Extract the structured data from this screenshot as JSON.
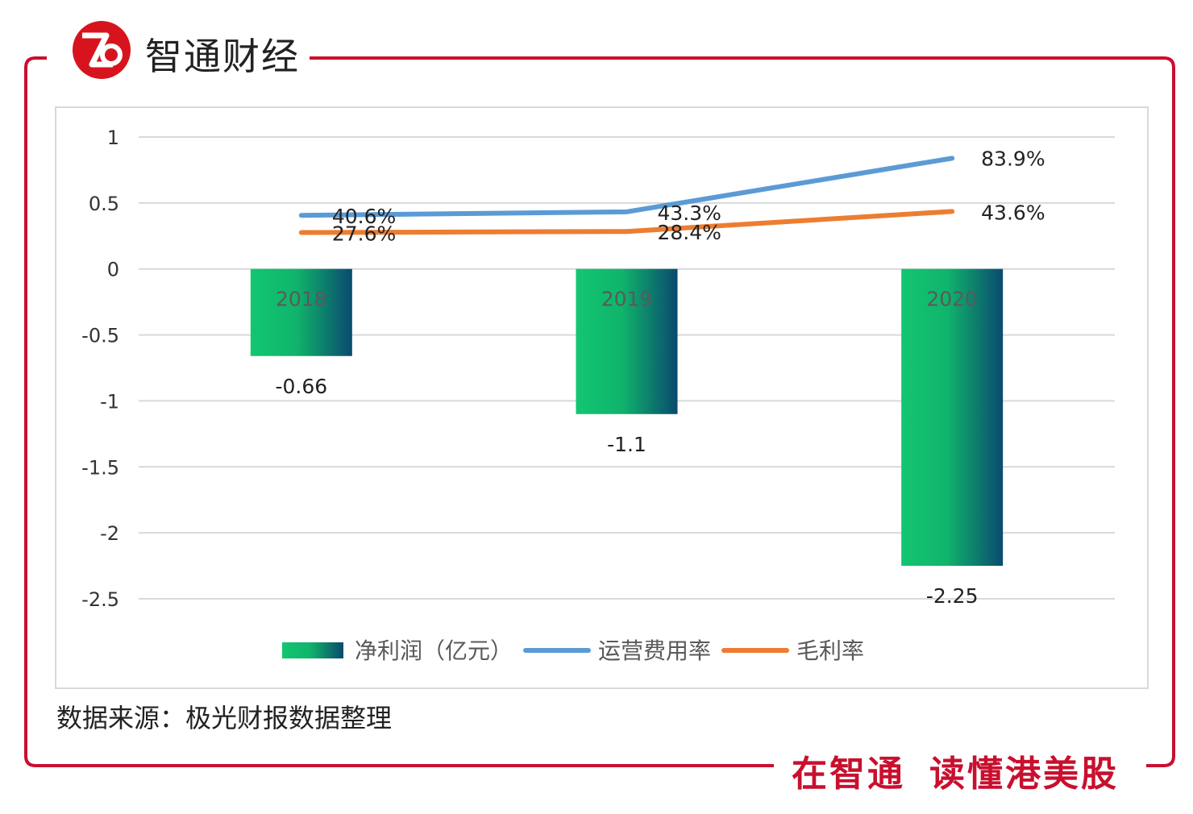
{
  "brand": {
    "name": "智通财经",
    "logo_icon": "zhitong-logo-icon",
    "accent_color": "#c8102e"
  },
  "chart_data": {
    "type": "bar",
    "categories": [
      "2018",
      "2019",
      "2020"
    ],
    "ylim": [
      -2.5,
      1
    ],
    "yticks": [
      "1",
      "0.5",
      "0",
      "-0.5",
      "-1",
      "-1.5",
      "-2",
      "-2.5"
    ],
    "grid": true,
    "legend_position": "bottom",
    "series": [
      {
        "name": "净利润（亿元）",
        "type": "bar",
        "values": [
          -0.66,
          -1.1,
          -2.25
        ],
        "labels": [
          "-0.66",
          "-1.1",
          "-2.25"
        ],
        "color": "#12c670"
      },
      {
        "name": "运营费用率",
        "type": "line",
        "values": [
          0.406,
          0.433,
          0.839
        ],
        "labels": [
          "40.6%",
          "43.3%",
          "83.9%"
        ],
        "color": "#5b9bd5"
      },
      {
        "name": "毛利率",
        "type": "line",
        "values": [
          0.276,
          0.284,
          0.436
        ],
        "labels": [
          "27.6%",
          "28.4%",
          "43.6%"
        ],
        "color": "#ed7d31"
      }
    ]
  },
  "source_note": "数据来源：极光财报数据整理",
  "slogan": {
    "left": "在智通",
    "right": "读懂港美股"
  }
}
